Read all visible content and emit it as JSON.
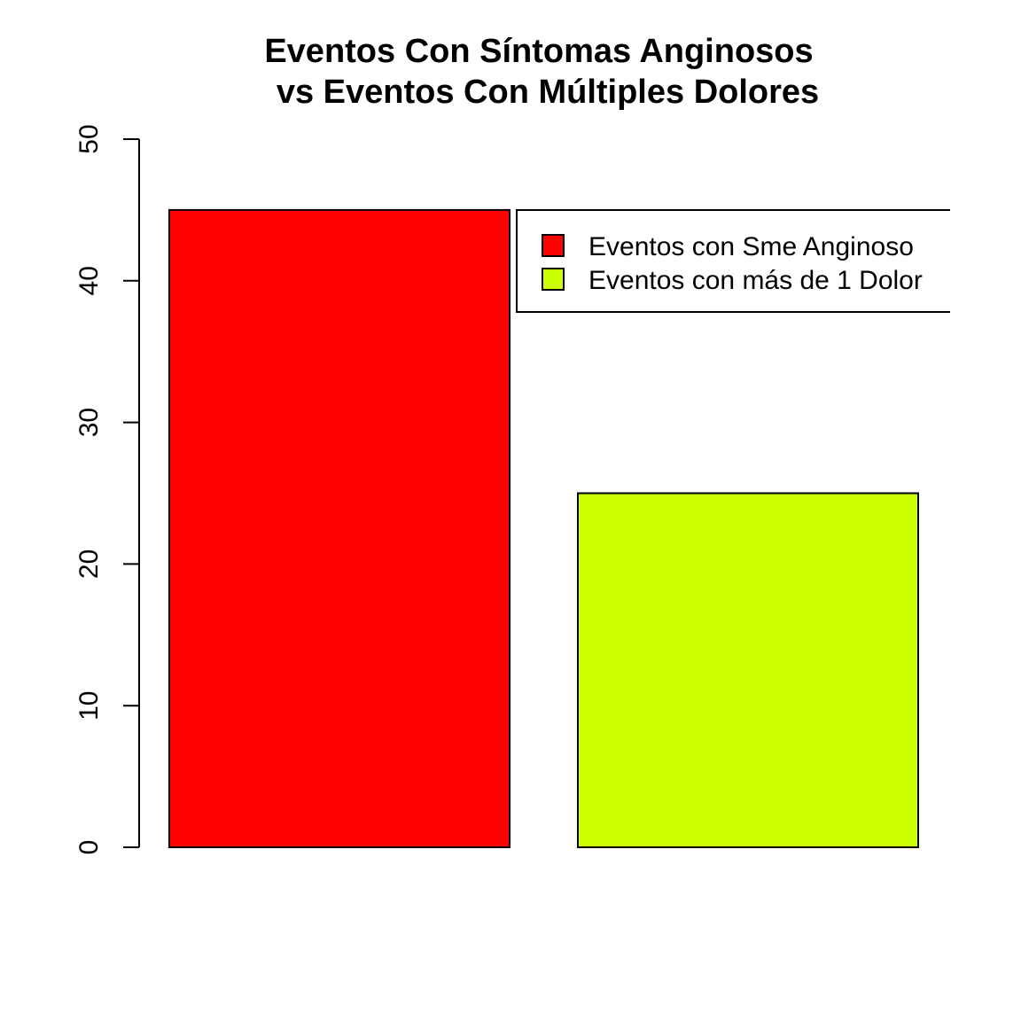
{
  "chart_data": {
    "type": "bar",
    "title": "Eventos Con Síntomas Anginosos",
    "subtitle": "vs Eventos Con Múltiples Dolores",
    "xlabel": "",
    "ylabel": "",
    "categories": [
      "Eventos con Sme Anginoso",
      "Eventos con más de 1 Dolor"
    ],
    "values": [
      45,
      25
    ],
    "colors": [
      "#FF0000",
      "#CCFF00"
    ],
    "ylim": [
      0,
      50
    ],
    "yticks": [
      0,
      10,
      20,
      30,
      40,
      50
    ],
    "grid": false,
    "legend": {
      "position": "top-right",
      "entries": [
        {
          "label": "Eventos con Sme Anginoso",
          "color": "#FF0000"
        },
        {
          "label": "Eventos con más de 1 Dolor",
          "color": "#CCFF00"
        }
      ]
    }
  }
}
